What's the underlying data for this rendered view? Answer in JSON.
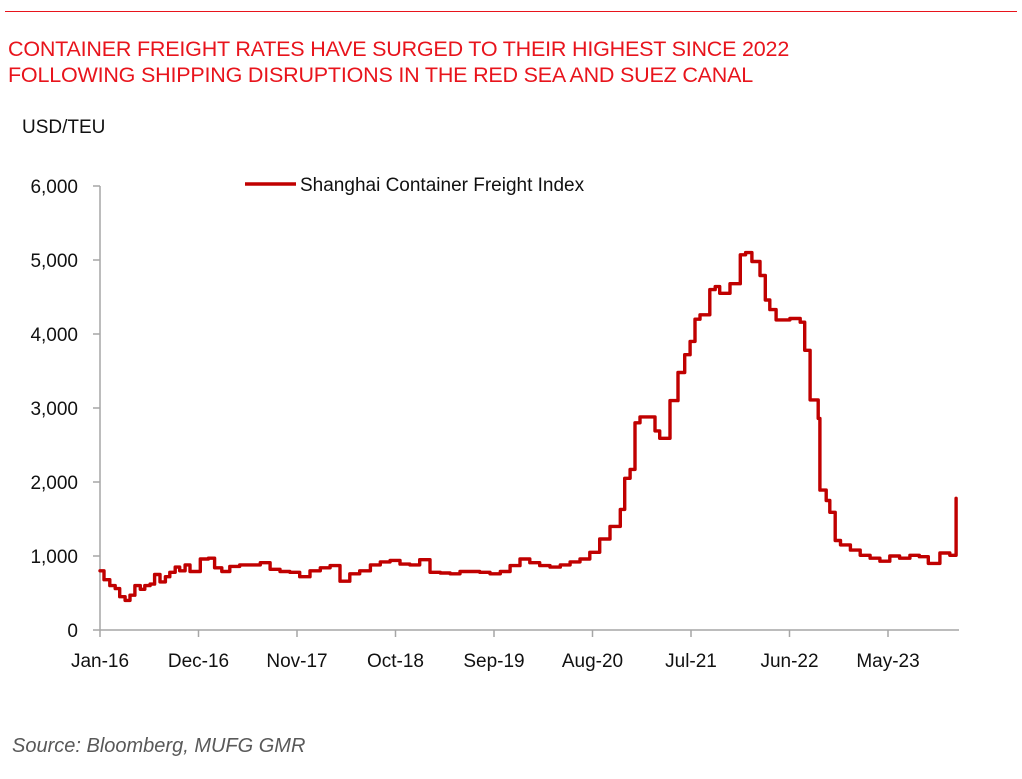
{
  "header": {
    "title_line1": "CONTAINER FREIGHT RATES HAVE SURGED TO THEIR HIGHEST SINCE 2022",
    "title_line2": "FOLLOWING SHIPPING DISRUPTIONS IN THE RED SEA AND SUEZ CANAL",
    "accent_color": "#e8141c"
  },
  "footer": {
    "source": "Source: Bloomberg, MUFG GMR"
  },
  "chart_data": {
    "type": "line",
    "title": "CONTAINER FREIGHT RATES HAVE SURGED TO THEIR HIGHEST SINCE 2022 FOLLOWING SHIPPING DISRUPTIONS IN THE RED SEA AND SUEZ CANAL",
    "xlabel": "",
    "ylabel": "USD/TEU",
    "ylim": [
      0,
      6000
    ],
    "yticks": [
      0,
      1000,
      2000,
      3000,
      4000,
      5000,
      6000
    ],
    "ytick_labels": [
      "0",
      "1,000",
      "2,000",
      "3,000",
      "4,000",
      "5,000",
      "6,000"
    ],
    "x_unit": "months since Jan-2016",
    "xlim": [
      0,
      96.8
    ],
    "xticks": [
      0,
      11,
      22,
      33,
      44,
      55,
      66,
      77,
      88
    ],
    "xtick_labels": [
      "Jan-16",
      "Dec-16",
      "Nov-17",
      "Oct-18",
      "Sep-19",
      "Aug-20",
      "Jul-21",
      "Jun-22",
      "May-23"
    ],
    "grid": false,
    "legend": {
      "position": "top-center",
      "entries": [
        "Shanghai Container Freight Index"
      ]
    },
    "series": [
      {
        "name": "Shanghai Container Freight Index",
        "color": "#c00000",
        "step": true,
        "x": [
          0,
          0.45,
          1.1,
          1.7,
          2.2,
          2.8,
          3.35,
          3.9,
          4.5,
          5.0,
          5.6,
          6.1,
          6.7,
          7.3,
          7.8,
          8.4,
          8.9,
          9.5,
          10.05,
          11.2,
          12.1,
          12.8,
          13.6,
          14.5,
          15.6,
          16.75,
          17.9,
          19.0,
          20.1,
          21.2,
          22.3,
          23.45,
          24.6,
          25.7,
          26.8,
          27.9,
          29.0,
          30.2,
          31.3,
          32.4,
          33.5,
          34.6,
          35.7,
          36.85,
          38.0,
          39.1,
          40.2,
          41.3,
          42.4,
          43.55,
          44.7,
          45.8,
          46.9,
          48.0,
          49.1,
          50.25,
          51.4,
          52.5,
          53.6,
          54.7,
          55.8,
          56.95,
          58.1,
          58.6,
          59.2,
          59.75,
          60.3,
          61.4,
          61.98,
          62.5,
          63.65,
          64.55,
          65.3,
          65.9,
          66.45,
          67.0,
          68.1,
          68.7,
          69.2,
          70.35,
          71.5,
          72.1,
          72.8,
          73.7,
          74.3,
          74.8,
          75.5,
          77.05,
          78.2,
          78.7,
          79.3,
          80.2,
          80.4,
          81.1,
          81.5,
          82.1,
          82.7,
          83.8,
          84.9,
          86.0,
          87.1,
          88.2,
          89.3,
          90.45,
          91.5,
          92.5,
          93.3,
          93.8,
          94.9,
          95.5,
          95.6
        ],
        "values": [
          800,
          680,
          600,
          560,
          450,
          400,
          470,
          600,
          550,
          600,
          620,
          750,
          650,
          720,
          780,
          850,
          800,
          880,
          790,
          960,
          970,
          840,
          790,
          860,
          880,
          880,
          910,
          820,
          790,
          780,
          720,
          800,
          840,
          870,
          660,
          760,
          800,
          880,
          920,
          940,
          890,
          880,
          950,
          780,
          770,
          760,
          790,
          790,
          780,
          760,
          790,
          870,
          960,
          910,
          870,
          850,
          880,
          920,
          960,
          1050,
          1230,
          1400,
          1630,
          2050,
          2170,
          2800,
          2880,
          2880,
          2690,
          2590,
          3100,
          3480,
          3720,
          3900,
          4200,
          4260,
          4600,
          4640,
          4550,
          4680,
          5070,
          5100,
          4980,
          4790,
          4460,
          4330,
          4190,
          4210,
          4160,
          3780,
          3110,
          2860,
          1890,
          1750,
          1590,
          1210,
          1150,
          1080,
          1010,
          970,
          930,
          1000,
          970,
          1010,
          990,
          900,
          900,
          1040,
          1010,
          1010,
          1780
        ]
      }
    ]
  }
}
